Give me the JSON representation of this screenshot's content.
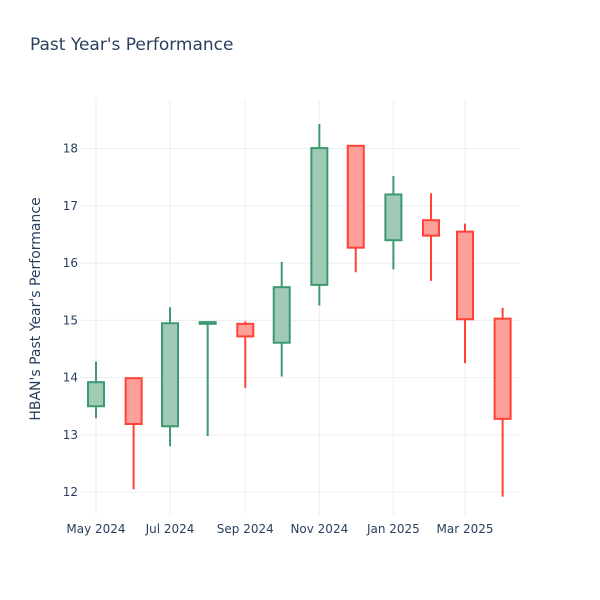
{
  "chart_data": {
    "type": "candlestick",
    "title": "Past Year's Performance",
    "xlabel": "",
    "ylabel": "HBAN's Past Year's Performance",
    "ylim": [
      11.6,
      18.85
    ],
    "y_ticks": [
      12,
      13,
      14,
      15,
      16,
      17,
      18
    ],
    "x_ticks": [
      {
        "label": "May 2024",
        "date": "2024-05-01"
      },
      {
        "label": "Jul 2024",
        "date": "2024-07-01"
      },
      {
        "label": "Sep 2024",
        "date": "2024-09-01"
      },
      {
        "label": "Nov 2024",
        "date": "2024-11-01"
      },
      {
        "label": "Jan 2025",
        "date": "2025-01-01"
      },
      {
        "label": "Mar 2025",
        "date": "2025-03-01"
      }
    ],
    "grid": true,
    "colors": {
      "increasing_line": "#3d9970",
      "increasing_fill": "#9ecab6",
      "decreasing_line": "#ff4136",
      "decreasing_fill": "#ff9f9a",
      "text": "#2a3f5f",
      "grid": "#ebeef3"
    },
    "candles": [
      {
        "date": "2024-05-01",
        "open": 13.5,
        "high": 14.28,
        "low": 13.29,
        "close": 13.92
      },
      {
        "date": "2024-06-01",
        "open": 13.99,
        "high": 14.0,
        "low": 12.05,
        "close": 13.19
      },
      {
        "date": "2024-07-01",
        "open": 13.15,
        "high": 15.23,
        "low": 12.8,
        "close": 14.95
      },
      {
        "date": "2024-08-01",
        "open": 14.94,
        "high": 14.98,
        "low": 12.98,
        "close": 14.97
      },
      {
        "date": "2024-09-01",
        "open": 14.94,
        "high": 14.98,
        "low": 13.82,
        "close": 14.72
      },
      {
        "date": "2024-10-01",
        "open": 14.61,
        "high": 16.02,
        "low": 14.02,
        "close": 15.58
      },
      {
        "date": "2024-11-01",
        "open": 15.62,
        "high": 18.43,
        "low": 15.26,
        "close": 18.01
      },
      {
        "date": "2024-12-01",
        "open": 18.05,
        "high": 18.06,
        "low": 15.84,
        "close": 16.27
      },
      {
        "date": "2025-01-01",
        "open": 16.4,
        "high": 17.52,
        "low": 15.89,
        "close": 17.2
      },
      {
        "date": "2025-02-01",
        "open": 16.75,
        "high": 17.22,
        "low": 15.69,
        "close": 16.48
      },
      {
        "date": "2025-03-01",
        "open": 16.55,
        "high": 16.69,
        "low": 14.25,
        "close": 15.02
      },
      {
        "date": "2025-04-01",
        "open": 15.03,
        "high": 15.22,
        "low": 11.92,
        "close": 13.28
      }
    ]
  }
}
